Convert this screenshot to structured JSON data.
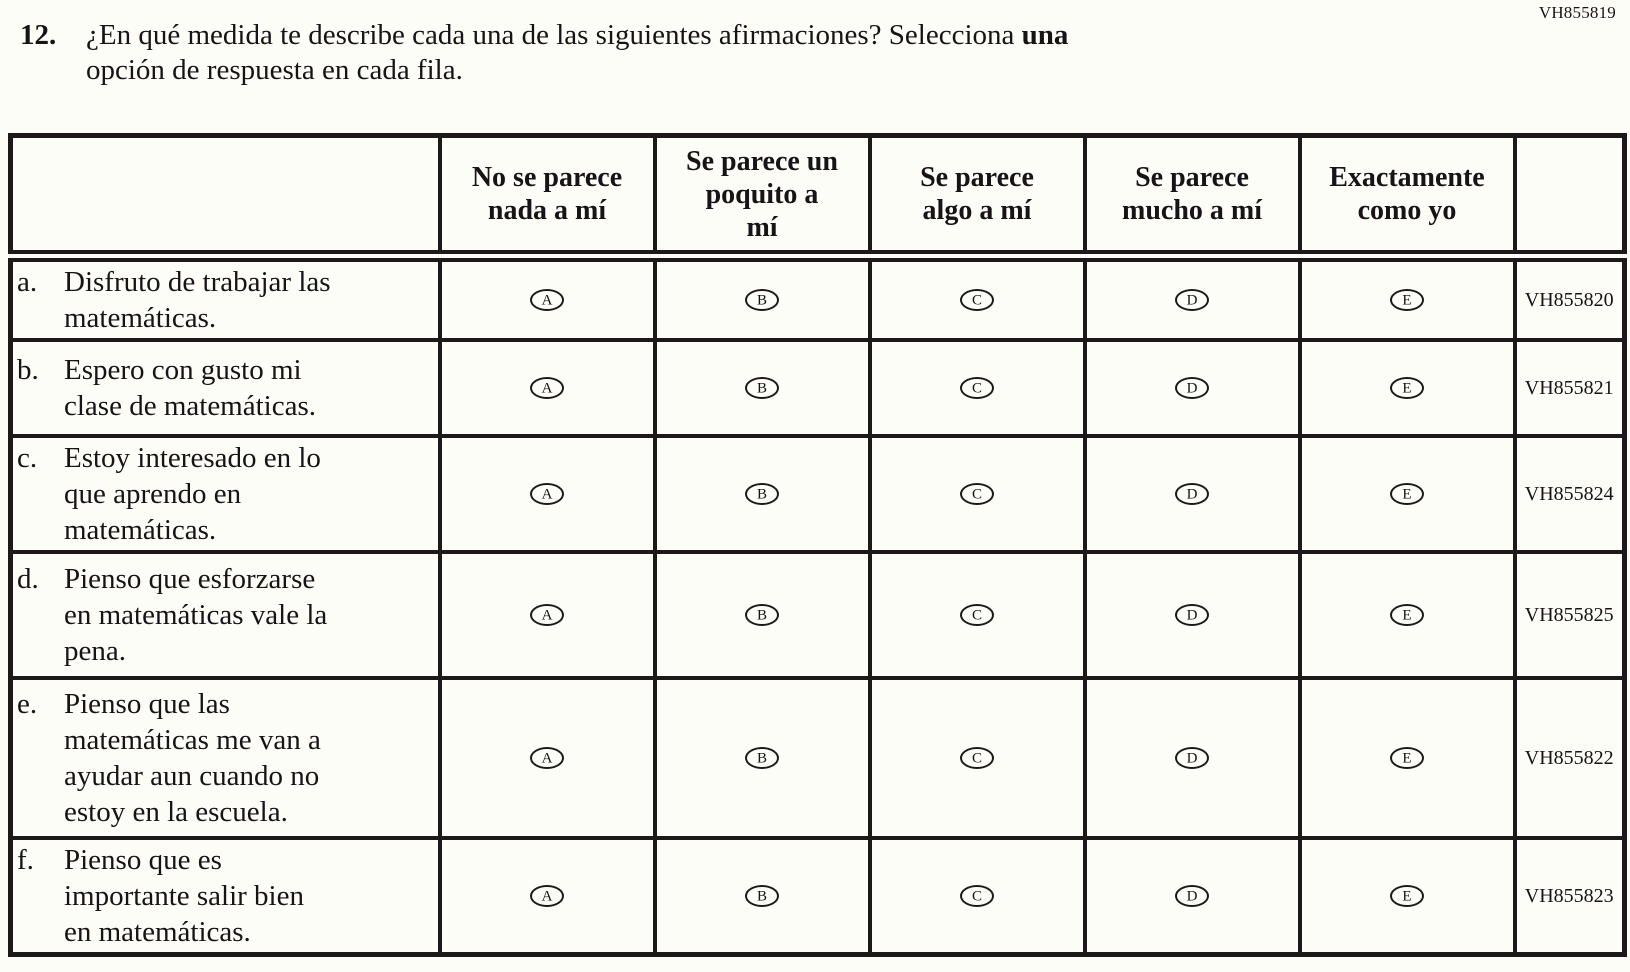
{
  "page": {
    "form_code": "VH855819",
    "question_number": "12.",
    "question_part1": "¿En qué medida te describe cada una de las siguientes afirmaciones? Selecciona ",
    "question_bold": "una",
    "question_part2": "\nopción de respuesta en cada fila."
  },
  "table": {
    "headers": [
      "No se parece\nnada a mí",
      "Se parece un\npoquito a\nmí",
      "Se parece\nalgo a mí",
      "Se parece\nmucho a mí",
      "Exactamente\ncomo yo"
    ],
    "options": [
      "A",
      "B",
      "C",
      "D",
      "E"
    ],
    "rows": [
      {
        "letter": "a.",
        "statement": "Disfruto de trabajar las\nmatemáticas.",
        "code": "VH855820"
      },
      {
        "letter": "b.",
        "statement": "Espero con gusto mi\nclase de matemáticas.",
        "code": "VH855821"
      },
      {
        "letter": "c.",
        "statement": "Estoy interesado en lo\nque aprendo en\nmatemáticas.",
        "code": "VH855824"
      },
      {
        "letter": "d.",
        "statement": "Pienso que esforzarse\nen matemáticas vale la\npena.",
        "code": "VH855825"
      },
      {
        "letter": "e.",
        "statement": "Pienso que las\nmatemáticas me van a\nayudar aun cuando no\nestoy en la escuela.",
        "code": "VH855822"
      },
      {
        "letter": "f.",
        "statement": "Pienso que es\nimportante salir bien\nen matemáticas.",
        "code": "VH855823"
      }
    ]
  },
  "colors": {
    "text": "#181316",
    "border": "#1d191a",
    "background": "#fdfdf8"
  }
}
